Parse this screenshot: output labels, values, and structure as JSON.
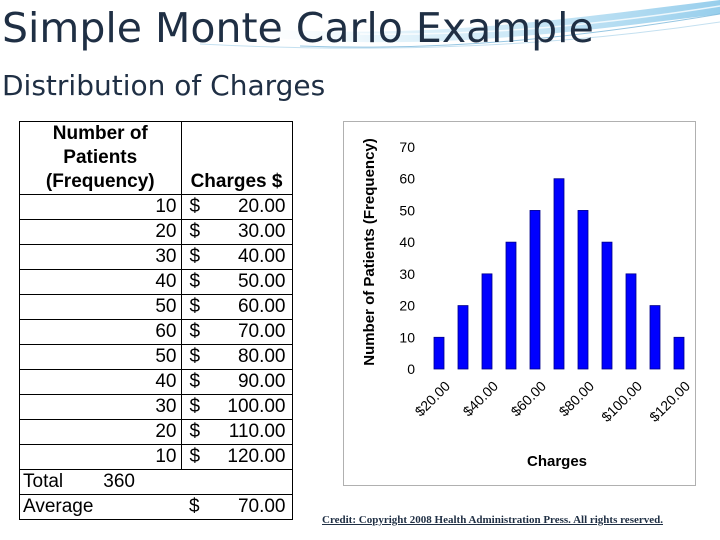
{
  "slide": {
    "title": "Simple Monte Carlo Example",
    "subtitle": "Distribution of Charges",
    "credit": "Credit: Copyright 2008 Health Administration Press. All rights reserved.",
    "title_color": "#1f2f44"
  },
  "table": {
    "header_col1": "Number of Patients (Frequency)",
    "header_col2": "Charges $",
    "currency_symbol": "$",
    "rows": [
      {
        "frequency": "10",
        "charge": "20.00"
      },
      {
        "frequency": "20",
        "charge": "30.00"
      },
      {
        "frequency": "30",
        "charge": "40.00"
      },
      {
        "frequency": "40",
        "charge": "50.00"
      },
      {
        "frequency": "50",
        "charge": "60.00"
      },
      {
        "frequency": "60",
        "charge": "70.00"
      },
      {
        "frequency": "50",
        "charge": "80.00"
      },
      {
        "frequency": "40",
        "charge": "90.00"
      },
      {
        "frequency": "30",
        "charge": "100.00"
      },
      {
        "frequency": "20",
        "charge": "110.00"
      },
      {
        "frequency": "10",
        "charge": "120.00"
      }
    ],
    "total_label": "Total",
    "total_value": "360",
    "average_label": "Average",
    "average_currency": "$",
    "average_value": "70.00"
  },
  "chart_data": {
    "type": "bar",
    "categories": [
      "$20.00",
      "$30.00",
      "$40.00",
      "$50.00",
      "$60.00",
      "$70.00",
      "$80.00",
      "$90.00",
      "$100.00",
      "$110.00",
      "$120.00"
    ],
    "values": [
      10,
      20,
      30,
      40,
      50,
      60,
      50,
      40,
      30,
      20,
      10
    ],
    "tick_labels": [
      "$20.00",
      "$40.00",
      "$60.00",
      "$80.00",
      "$100.00",
      "$120.00"
    ],
    "xlabel": "Charges",
    "ylabel": "Number of Patients (Frequency)",
    "ylim": [
      0,
      70
    ],
    "yticks": [
      0,
      10,
      20,
      30,
      40,
      50,
      60,
      70
    ],
    "grid": false,
    "legend": "none",
    "bar_color": "#0000ff",
    "bar_edge_color": "#00008b"
  }
}
